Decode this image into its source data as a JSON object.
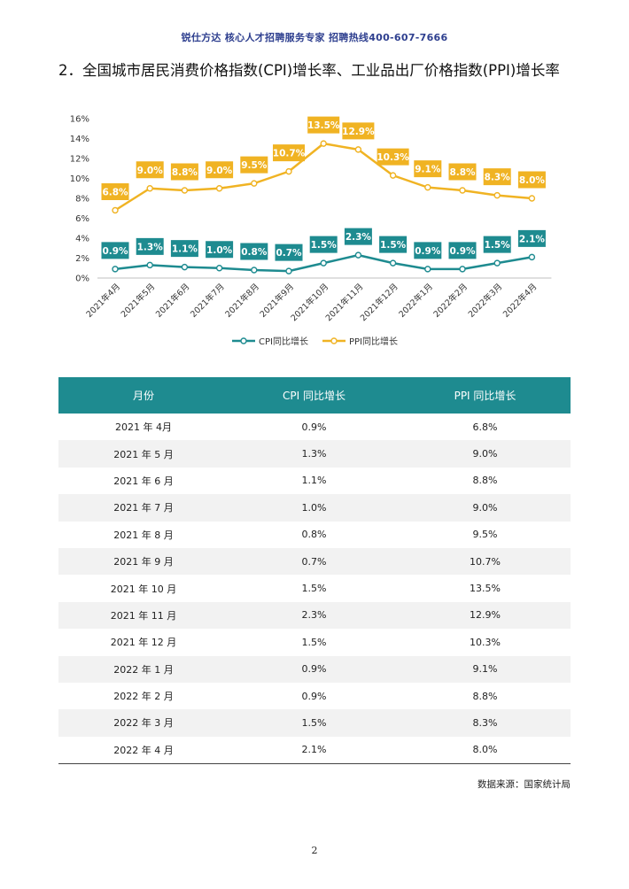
{
  "header": {
    "banner": "锐仕方达  核心人才招聘服务专家  招聘热线400-607-7666"
  },
  "section": {
    "title": "2．全国城市居民消费价格指数(CPI)增长率、工业品出厂价格指数(PPI)增长率"
  },
  "chart_data": {
    "type": "line",
    "categories": [
      "2021年4月",
      "2021年5月",
      "2021年6月",
      "2021年7月",
      "2021年8月",
      "2021年9月",
      "2021年10月",
      "2021年11月",
      "2021年12月",
      "2022年1月",
      "2022年2月",
      "2022年3月",
      "2022年4月"
    ],
    "y_ticks": [
      "0%",
      "2%",
      "4%",
      "6%",
      "8%",
      "10%",
      "12%",
      "14%",
      "16%"
    ],
    "ylim": [
      0,
      16
    ],
    "grid": false,
    "legend_position": "bottom",
    "series": [
      {
        "name": "CPI同比增长",
        "values": [
          0.9,
          1.3,
          1.1,
          1.0,
          0.8,
          0.7,
          1.5,
          2.3,
          1.5,
          0.9,
          0.9,
          1.5,
          2.1
        ],
        "labels": [
          "0.9%",
          "1.3%",
          "1.1%",
          "1.0%",
          "0.8%",
          "0.7%",
          "1.5%",
          "2.3%",
          "1.5%",
          "0.9%",
          "0.9%",
          "1.5%",
          "2.1%"
        ],
        "color": "#1e8b90"
      },
      {
        "name": "PPI同比增长",
        "values": [
          6.8,
          9.0,
          8.8,
          9.0,
          9.5,
          10.7,
          13.5,
          12.9,
          10.3,
          9.1,
          8.8,
          8.3,
          8.0
        ],
        "labels": [
          "6.8%",
          "9.0%",
          "8.8%",
          "9.0%",
          "9.5%",
          "10.7%",
          "13.5%",
          "12.9%",
          "10.3%",
          "9.1%",
          "8.8%",
          "8.3%",
          "8.0%"
        ],
        "color": "#f0b323"
      }
    ]
  },
  "table": {
    "headers": [
      "月份",
      "CPI 同比增长",
      "PPI 同比增长"
    ],
    "rows": [
      [
        "2021 年 4月",
        "0.9%",
        "6.8%"
      ],
      [
        "2021 年 5 月",
        "1.3%",
        "9.0%"
      ],
      [
        "2021 年 6 月",
        "1.1%",
        "8.8%"
      ],
      [
        "2021 年 7 月",
        "1.0%",
        "9.0%"
      ],
      [
        "2021 年 8 月",
        "0.8%",
        "9.5%"
      ],
      [
        "2021 年 9 月",
        "0.7%",
        "10.7%"
      ],
      [
        "2021 年 10 月",
        "1.5%",
        "13.5%"
      ],
      [
        "2021 年 11 月",
        "2.3%",
        "12.9%"
      ],
      [
        "2021 年 12 月",
        "1.5%",
        "10.3%"
      ],
      [
        "2022 年 1 月",
        "0.9%",
        "9.1%"
      ],
      [
        "2022 年 2 月",
        "0.9%",
        "8.8%"
      ],
      [
        "2022 年 3 月",
        "1.5%",
        "8.3%"
      ],
      [
        "2022 年 4 月",
        "2.1%",
        "8.0%"
      ]
    ]
  },
  "source": "数据来源：国家统计局",
  "page": {
    "number": "2"
  }
}
